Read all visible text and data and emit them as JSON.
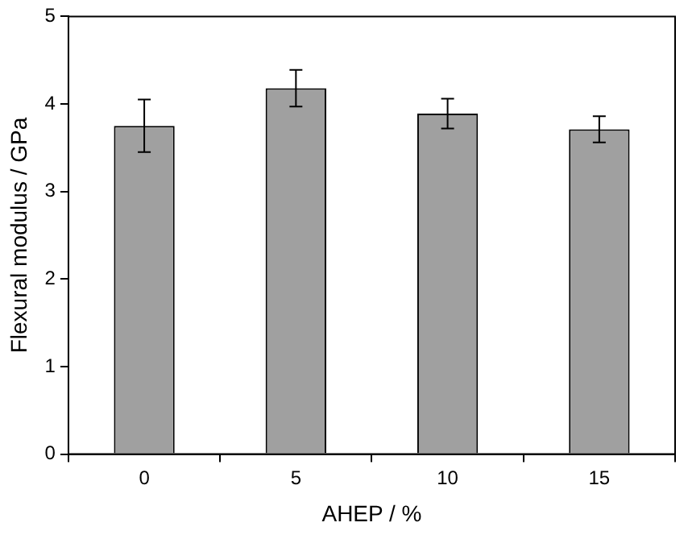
{
  "chart_data": {
    "type": "bar",
    "xlabel": "AHEP / %",
    "ylabel": "Flexural modulus / GPa",
    "categories": [
      "0",
      "5",
      "10",
      "15"
    ],
    "values": [
      3.75,
      4.18,
      3.89,
      3.71
    ],
    "errors": [
      0.3,
      0.21,
      0.17,
      0.15
    ],
    "color": "#a0a0a0",
    "ylim": [
      0,
      5
    ],
    "yticks": [
      0,
      1,
      2,
      3,
      4,
      5
    ],
    "grid": false,
    "legend": false
  }
}
